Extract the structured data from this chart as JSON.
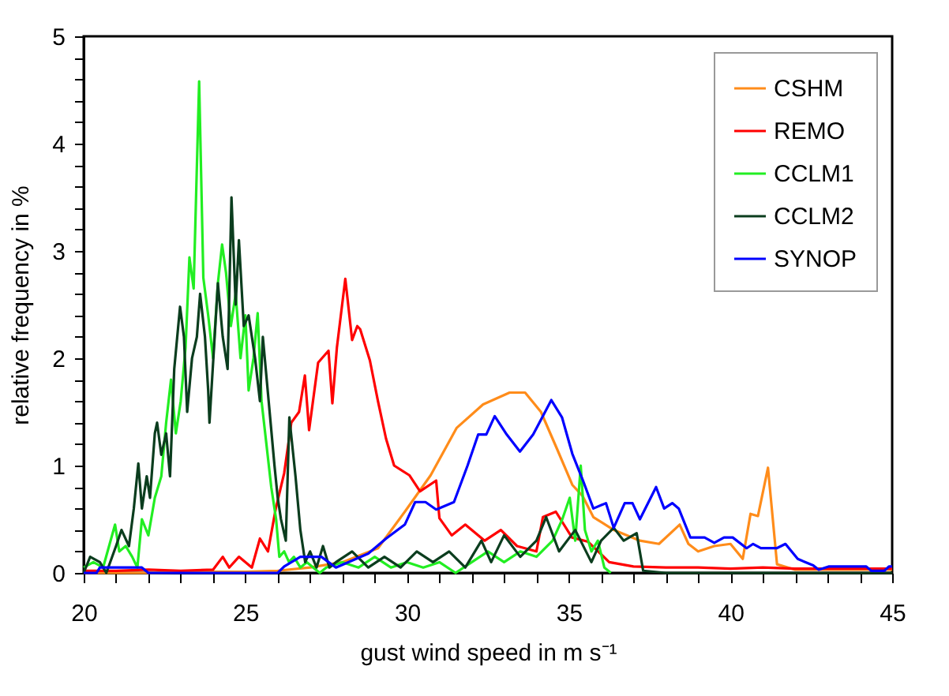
{
  "chart_data": {
    "type": "line",
    "xlabel": "gust wind speed in m s⁻¹",
    "ylabel": "relative frequency in %",
    "xlim": [
      20,
      45
    ],
    "ylim": [
      0,
      5
    ],
    "xticks": [
      20,
      {
        "value": 21,
        "label": null
      },
      {
        "value": 22,
        "label": null
      },
      {
        "value": 23,
        "label": null
      },
      {
        "value": 24,
        "label": null
      },
      25,
      {
        "value": 26,
        "label": null
      },
      {
        "value": 27,
        "label": null
      },
      {
        "value": 28,
        "label": null
      },
      {
        "value": 29,
        "label": null
      },
      30,
      {
        "value": 31,
        "label": null
      },
      {
        "value": 32,
        "label": null
      },
      {
        "value": 33,
        "label": null
      },
      {
        "value": 34,
        "label": null
      },
      35,
      {
        "value": 36,
        "label": null
      },
      {
        "value": 37,
        "label": null
      },
      {
        "value": 38,
        "label": null
      },
      {
        "value": 39,
        "label": null
      },
      40,
      {
        "value": 41,
        "label": null
      },
      {
        "value": 42,
        "label": null
      },
      {
        "value": 43,
        "label": null
      },
      {
        "value": 44,
        "label": null
      },
      45
    ],
    "yticks": [
      0,
      {
        "value": 0.2,
        "label": null
      },
      {
        "value": 0.4,
        "label": null
      },
      {
        "value": 0.6,
        "label": null
      },
      {
        "value": 0.8,
        "label": null
      },
      1,
      {
        "value": 1.2,
        "label": null
      },
      {
        "value": 1.4,
        "label": null
      },
      {
        "value": 1.6,
        "label": null
      },
      {
        "value": 1.8,
        "label": null
      },
      2,
      {
        "value": 2.2,
        "label": null
      },
      {
        "value": 2.4,
        "label": null
      },
      {
        "value": 2.6,
        "label": null
      },
      {
        "value": 2.8,
        "label": null
      },
      3,
      {
        "value": 3.2,
        "label": null
      },
      {
        "value": 3.4,
        "label": null
      },
      {
        "value": 3.6,
        "label": null
      },
      {
        "value": 3.8,
        "label": null
      },
      4,
      {
        "value": 4.2,
        "label": null
      },
      {
        "value": 4.4,
        "label": null
      },
      {
        "value": 4.6,
        "label": null
      },
      {
        "value": 4.8,
        "label": null
      },
      5
    ],
    "grid": false,
    "legend": "top right",
    "line_style": "solid",
    "series": [
      {
        "name": "CSHM",
        "color": "#ff8c1a",
        "x": [
          20,
          22,
          24,
          25,
          26,
          27,
          28,
          29.1,
          29.93,
          30.73,
          31.53,
          32.35,
          33.17,
          33.65,
          34.14,
          34.63,
          35.11,
          35.42,
          35.76,
          36.39,
          37.2,
          37.79,
          38.43,
          38.7,
          39.0,
          39.5,
          40.0,
          40.38,
          40.62,
          40.85,
          41.16,
          41.44,
          42,
          43,
          44,
          45
        ],
        "values": [
          0,
          0,
          0.01,
          0.01,
          0.02,
          0.05,
          0.1,
          0.23,
          0.57,
          0.91,
          1.35,
          1.57,
          1.68,
          1.68,
          1.5,
          1.16,
          0.82,
          0.72,
          0.52,
          0.4,
          0.3,
          0.27,
          0.45,
          0.27,
          0.2,
          0.25,
          0.27,
          0.13,
          0.55,
          0.53,
          0.98,
          0.08,
          0.03,
          0.03,
          0.03,
          0.03
        ]
      },
      {
        "name": "REMO",
        "color": "#ff0000",
        "x": [
          20,
          21,
          22,
          23,
          24,
          24.3,
          24.5,
          24.8,
          25.2,
          25.45,
          25.7,
          25.94,
          26.2,
          26.42,
          26.66,
          26.84,
          26.97,
          27.25,
          27.57,
          27.69,
          27.83,
          28.09,
          28.3,
          28.46,
          28.55,
          28.85,
          29.1,
          29.35,
          29.6,
          30.07,
          30.4,
          30.9,
          31.0,
          31.38,
          31.8,
          32.4,
          32.9,
          33.4,
          34.0,
          34.2,
          34.6,
          35.1,
          35.6,
          36.25,
          37,
          38,
          39,
          40,
          41,
          42,
          43,
          44,
          45
        ],
        "values": [
          0.02,
          0.02,
          0.03,
          0.02,
          0.03,
          0.15,
          0.05,
          0.15,
          0.05,
          0.32,
          0.2,
          0.6,
          0.93,
          1.4,
          1.5,
          1.84,
          1.33,
          1.96,
          2.07,
          1.58,
          2.1,
          2.74,
          2.17,
          2.3,
          2.27,
          1.98,
          1.6,
          1.25,
          1.0,
          0.91,
          0.76,
          0.86,
          0.51,
          0.35,
          0.45,
          0.3,
          0.4,
          0.25,
          0.2,
          0.52,
          0.57,
          0.33,
          0.29,
          0.1,
          0.06,
          0.05,
          0.05,
          0.04,
          0.05,
          0.04,
          0.04,
          0.04,
          0.04
        ]
      },
      {
        "name": "CCLM1",
        "color": "#22ee22",
        "x": [
          20.0,
          20.3,
          20.6,
          20.97,
          21.1,
          21.3,
          21.5,
          21.66,
          21.8,
          22.0,
          22.2,
          22.4,
          22.55,
          22.7,
          22.85,
          23.0,
          23.15,
          23.27,
          23.4,
          23.57,
          23.7,
          23.85,
          24.0,
          24.15,
          24.28,
          24.4,
          24.55,
          24.7,
          24.85,
          25.0,
          25.1,
          25.25,
          25.38,
          25.5,
          25.65,
          25.8,
          25.95,
          26.05,
          26.2,
          26.35,
          26.5,
          26.7,
          26.9,
          27.1,
          27.3,
          27.5,
          28.0,
          28.5,
          29.0,
          29.5,
          30.0,
          30.5,
          31.0,
          31.5,
          32.0,
          32.5,
          33.0,
          33.5,
          34.0,
          34.5,
          34.8,
          35.03,
          35.2,
          35.37,
          35.5,
          35.7,
          35.9,
          36.1,
          36.3
        ],
        "values": [
          0.05,
          0.1,
          0.05,
          0.45,
          0.2,
          0.25,
          0.15,
          0.05,
          0.5,
          0.35,
          0.7,
          0.9,
          1.4,
          1.8,
          1.3,
          1.6,
          2.1,
          2.94,
          2.65,
          4.58,
          2.75,
          2.4,
          2.0,
          2.7,
          3.06,
          2.8,
          2.3,
          2.6,
          2.0,
          2.4,
          1.7,
          2.0,
          2.42,
          1.6,
          1.2,
          0.8,
          0.5,
          0.15,
          0.2,
          0.1,
          0.15,
          0.05,
          0.1,
          0.05,
          0.0,
          0.05,
          0.1,
          0.05,
          0.15,
          0.05,
          0.1,
          0.05,
          0.1,
          0.0,
          0.1,
          0.2,
          0.1,
          0.2,
          0.15,
          0.3,
          0.5,
          0.7,
          0.3,
          1.0,
          0.4,
          0.2,
          0.3,
          0.05,
          0.0
        ]
      },
      {
        "name": "CCLM2",
        "color": "#0b3d1e",
        "x": [
          20.0,
          20.2,
          20.5,
          20.7,
          21.0,
          21.17,
          21.4,
          21.55,
          21.69,
          21.8,
          21.95,
          22.05,
          22.2,
          22.27,
          22.4,
          22.55,
          22.67,
          22.8,
          22.98,
          23.1,
          23.2,
          23.35,
          23.5,
          23.6,
          23.75,
          23.85,
          23.89,
          24.05,
          24.15,
          24.3,
          24.45,
          24.57,
          24.7,
          24.8,
          24.95,
          25.1,
          25.3,
          25.45,
          25.54,
          25.75,
          25.9,
          26.0,
          26.1,
          26.25,
          26.36,
          26.55,
          26.7,
          26.85,
          27.0,
          27.2,
          27.4,
          27.6,
          27.8,
          28.3,
          28.8,
          29.3,
          29.8,
          30.3,
          30.8,
          31.3,
          31.8,
          32.3,
          32.6,
          33.0,
          33.5,
          34.0,
          34.3,
          34.7,
          35.2,
          35.7,
          36.0,
          36.39,
          36.7,
          37.1,
          37.3,
          38,
          40,
          42,
          45
        ],
        "values": [
          0.0,
          0.15,
          0.1,
          0.0,
          0.25,
          0.4,
          0.25,
          0.6,
          1.02,
          0.6,
          0.9,
          0.7,
          1.3,
          1.4,
          1.1,
          1.3,
          0.9,
          1.9,
          2.48,
          2.2,
          1.5,
          2.0,
          2.2,
          2.6,
          2.2,
          1.7,
          1.4,
          2.2,
          2.7,
          2.2,
          1.9,
          3.5,
          2.5,
          3.1,
          2.3,
          2.4,
          2.0,
          1.6,
          2.2,
          1.5,
          1.0,
          0.7,
          0.5,
          0.3,
          1.45,
          0.9,
          0.4,
          0.1,
          0.2,
          0.05,
          0.25,
          0.05,
          0.1,
          0.2,
          0.05,
          0.15,
          0.05,
          0.2,
          0.1,
          0.2,
          0.05,
          0.3,
          0.1,
          0.35,
          0.15,
          0.3,
          0.52,
          0.2,
          0.4,
          0.1,
          0.3,
          0.42,
          0.3,
          0.37,
          0.02,
          0.0,
          0.0,
          0.0,
          0.0
        ]
      },
      {
        "name": "SYNOP",
        "color": "#0000ff",
        "x": [
          20,
          20.4,
          20.5,
          21.8,
          22,
          26,
          26.2,
          26.7,
          27.35,
          27.8,
          28.8,
          29.35,
          29.93,
          30.25,
          30.57,
          30.9,
          31.45,
          31.87,
          32.2,
          32.45,
          32.71,
          33.08,
          33.49,
          33.9,
          34.46,
          34.79,
          35.11,
          35.44,
          35.76,
          36.15,
          36.39,
          36.73,
          36.97,
          37.2,
          37.7,
          37.95,
          38.2,
          38.4,
          38.76,
          39.2,
          39.5,
          39.8,
          40.07,
          40.5,
          40.7,
          40.94,
          41.43,
          41.7,
          42.08,
          42.56,
          42.73,
          43.05,
          44.2,
          44.35,
          44.76,
          44.9,
          45
        ],
        "values": [
          0,
          0,
          0.05,
          0.05,
          0,
          0,
          0.06,
          0.15,
          0.15,
          0.05,
          0.18,
          0.32,
          0.45,
          0.66,
          0.66,
          0.59,
          0.66,
          1.0,
          1.29,
          1.29,
          1.46,
          1.29,
          1.13,
          1.29,
          1.61,
          1.45,
          1.11,
          0.86,
          0.6,
          0.65,
          0.42,
          0.65,
          0.65,
          0.5,
          0.8,
          0.6,
          0.65,
          0.6,
          0.33,
          0.33,
          0.28,
          0.33,
          0.33,
          0.23,
          0.27,
          0.23,
          0.23,
          0.27,
          0.13,
          0.07,
          0.03,
          0.06,
          0.06,
          0.02,
          0.02,
          0.06,
          0.06
        ]
      }
    ]
  }
}
